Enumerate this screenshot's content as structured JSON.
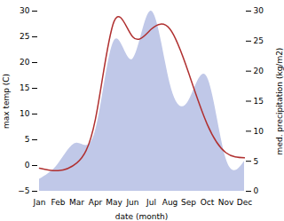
{
  "chart_data": {
    "type": "line",
    "categories": [
      "Jan",
      "Feb",
      "Mar",
      "Apr",
      "May",
      "Jun",
      "Jul",
      "Aug",
      "Sep",
      "Oct",
      "Nov",
      "Dec"
    ],
    "xlabel": "date (month)",
    "ylabel": "max temp (C)",
    "y2label": "med. precipitation (kg/m2)",
    "ylim": [
      -5,
      30
    ],
    "yticks": [
      -5,
      0,
      5,
      10,
      15,
      20,
      25,
      30
    ],
    "y2lim": [
      0,
      30
    ],
    "y2ticks": [
      0,
      5,
      10,
      15,
      20,
      25,
      30
    ],
    "grid": false,
    "series": [
      {
        "type": "area",
        "axis": "y2",
        "color": "#c0c8e8",
        "values": [
          2.0,
          4.5,
          8.0,
          10.0,
          25.0,
          22.0,
          30.0,
          18.0,
          15.0,
          19.0,
          5.5,
          5.0
        ]
      },
      {
        "type": "line",
        "axis": "y",
        "color": "#b03030",
        "values": [
          -0.5,
          -1.0,
          0.5,
          9.0,
          28.0,
          25.0,
          26.5,
          26.5,
          18.0,
          8.0,
          2.5,
          1.5
        ]
      }
    ]
  }
}
